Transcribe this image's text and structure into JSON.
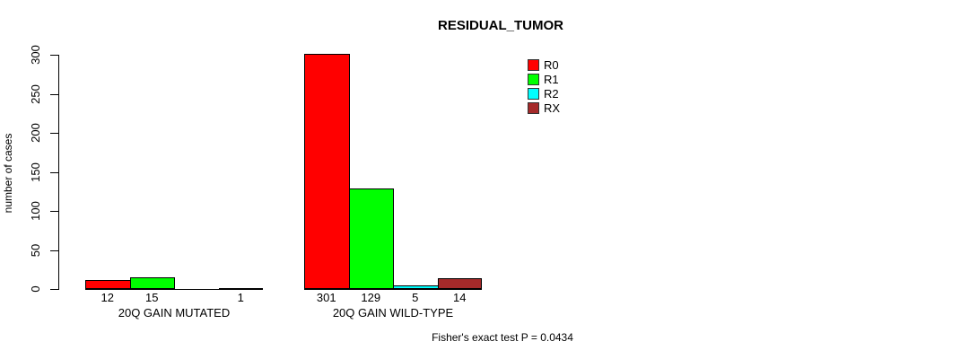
{
  "chart_data": {
    "type": "bar",
    "title": "RESIDUAL_TUMOR",
    "ylabel": "number of cases",
    "xlabel": "",
    "ylim": [
      0,
      300
    ],
    "yticks": [
      0,
      50,
      100,
      150,
      200,
      250,
      300
    ],
    "grid": false,
    "legend_position": "top-right",
    "categories": [
      "20Q GAIN MUTATED",
      "20Q GAIN WILD-TYPE"
    ],
    "series": [
      {
        "name": "R0",
        "color": "#FF0000",
        "values": [
          12,
          301
        ]
      },
      {
        "name": "R1",
        "color": "#00FF00",
        "values": [
          15,
          129
        ]
      },
      {
        "name": "R2",
        "color": "#00FFFF",
        "values": [
          0,
          5
        ]
      },
      {
        "name": "RX",
        "color": "#A52A2A",
        "values": [
          1,
          14
        ]
      }
    ],
    "bar_value_labels": [
      [
        "12",
        "15",
        "",
        "1"
      ],
      [
        "301",
        "129",
        "5",
        "14"
      ]
    ],
    "annotation": "Fisher's exact test P = 0.0434"
  }
}
